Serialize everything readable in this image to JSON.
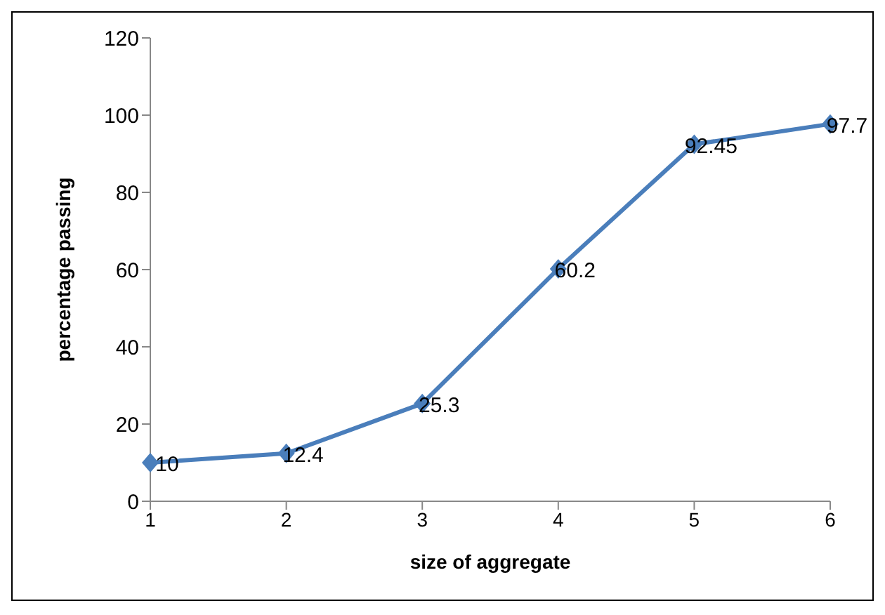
{
  "chart_data": {
    "type": "line",
    "xlabel": "size of aggregate",
    "ylabel": "percentage passing",
    "categories": [
      "1",
      "2",
      "3",
      "4",
      "5",
      "6"
    ],
    "series": [
      {
        "color": "#4a7ebb",
        "values": [
          10,
          12.4,
          25.3,
          60.2,
          92.45,
          97.7
        ]
      }
    ],
    "ylim": [
      0,
      120
    ],
    "yticks": [
      0,
      20,
      40,
      60,
      80,
      100,
      120
    ],
    "data_labels": true,
    "marker": "diamond",
    "line_style": "solid"
  }
}
